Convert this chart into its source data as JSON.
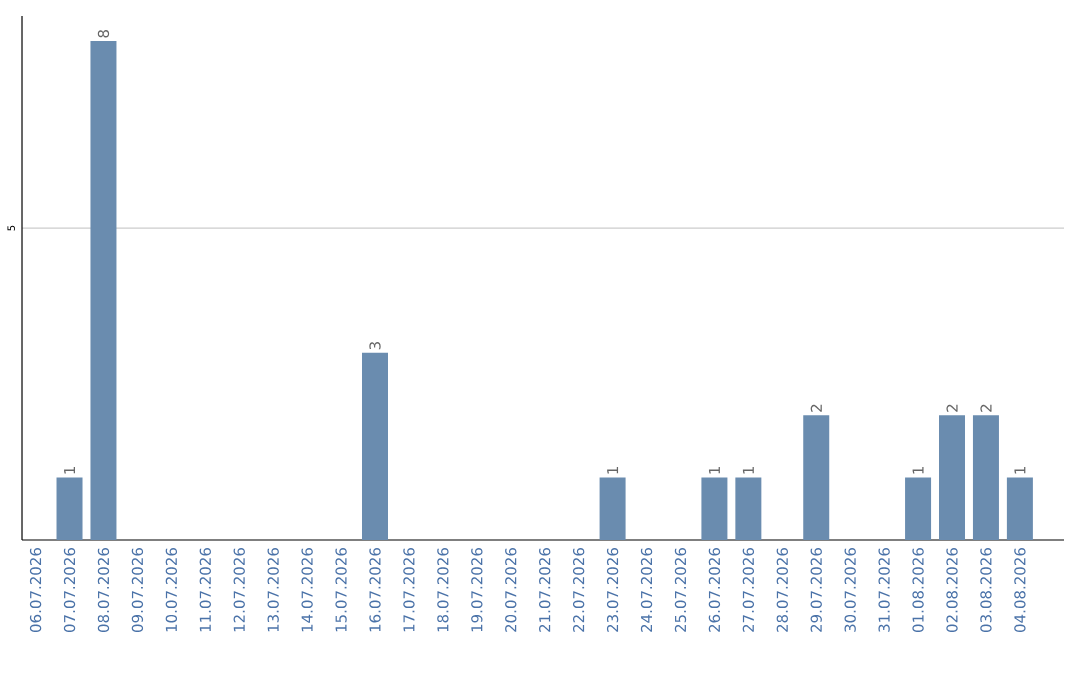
{
  "chart_data": {
    "type": "bar",
    "categories": [
      "06.07.2026",
      "07.07.2026",
      "08.07.2026",
      "09.07.2026",
      "10.07.2026",
      "11.07.2026",
      "12.07.2026",
      "13.07.2026",
      "14.07.2026",
      "15.07.2026",
      "16.07.2026",
      "17.07.2026",
      "18.07.2026",
      "19.07.2026",
      "20.07.2026",
      "21.07.2026",
      "22.07.2026",
      "23.07.2026",
      "24.07.2026",
      "25.07.2026",
      "26.07.2026",
      "27.07.2026",
      "28.07.2026",
      "29.07.2026",
      "30.07.2026",
      "31.07.2026",
      "01.08.2026",
      "02.08.2026",
      "03.08.2026",
      "04.08.2026"
    ],
    "values": [
      0,
      1,
      8,
      0,
      0,
      0,
      0,
      0,
      0,
      0,
      3,
      0,
      0,
      0,
      0,
      0,
      0,
      1,
      0,
      0,
      1,
      1,
      0,
      2,
      0,
      0,
      1,
      2,
      2,
      1
    ],
    "value_labels": [
      null,
      "1",
      "8",
      null,
      null,
      null,
      null,
      null,
      null,
      null,
      "3",
      null,
      null,
      null,
      null,
      null,
      null,
      "1",
      null,
      null,
      "1",
      "1",
      null,
      "2",
      null,
      null,
      "1",
      "2",
      "2",
      "1"
    ],
    "color": "#6a8caf",
    "ylim": [
      0,
      8.4
    ],
    "yticks": [
      5
    ],
    "grid": "y"
  }
}
